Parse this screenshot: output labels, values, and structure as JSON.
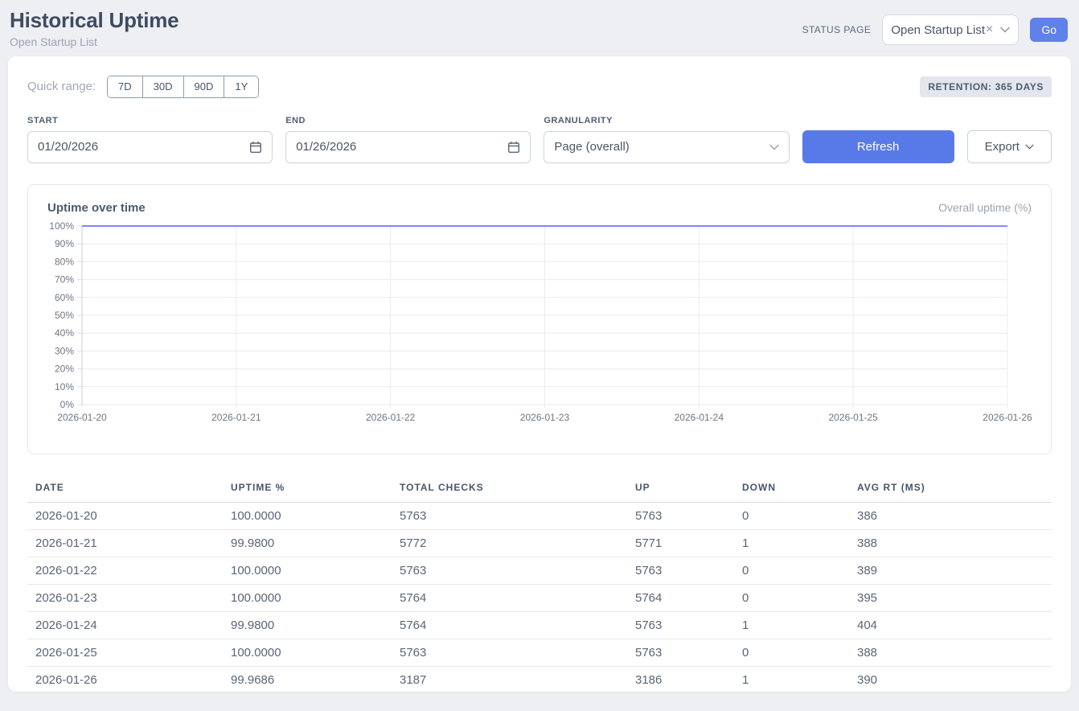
{
  "page": {
    "title": "Historical Uptime",
    "subtitle": "Open Startup List"
  },
  "header": {
    "status_page_label": "STATUS PAGE",
    "status_page_selected": "Open Startup List",
    "clear_symbol": "×",
    "go_button": "Go"
  },
  "filters": {
    "quick_range_label": "Quick range:",
    "quick_ranges": [
      "7D",
      "30D",
      "90D",
      "1Y"
    ],
    "retention_badge": "RETENTION: 365 DAYS",
    "start": {
      "label": "START",
      "value": "01/20/2026"
    },
    "end": {
      "label": "END",
      "value": "01/26/2026"
    },
    "granularity": {
      "label": "GRANULARITY",
      "value": "Page (overall)"
    },
    "refresh_button": "Refresh",
    "export_button": "Export"
  },
  "chart": {
    "title": "Uptime over time",
    "legend": "Overall uptime (%)"
  },
  "chart_data": {
    "type": "line",
    "title": "Uptime over time",
    "x": [
      "2026-01-20",
      "2026-01-21",
      "2026-01-22",
      "2026-01-23",
      "2026-01-24",
      "2026-01-25",
      "2026-01-26"
    ],
    "series": [
      {
        "name": "Overall uptime (%)",
        "values": [
          100.0,
          99.98,
          100.0,
          100.0,
          99.98,
          100.0,
          99.9686
        ]
      }
    ],
    "xlabel": "",
    "ylabel": "",
    "ylim": [
      0,
      100
    ],
    "y_ticks": [
      0,
      10,
      20,
      30,
      40,
      50,
      60,
      70,
      80,
      90,
      100
    ],
    "y_tick_suffix": "%",
    "grid": true,
    "legend_position": "top-right",
    "line_color": "#8187f0"
  },
  "table": {
    "columns": [
      "DATE",
      "UPTIME %",
      "TOTAL CHECKS",
      "UP",
      "DOWN",
      "AVG RT (MS)"
    ],
    "rows": [
      [
        "2026-01-20",
        "100.0000",
        "5763",
        "5763",
        "0",
        "386"
      ],
      [
        "2026-01-21",
        "99.9800",
        "5772",
        "5771",
        "1",
        "388"
      ],
      [
        "2026-01-22",
        "100.0000",
        "5763",
        "5763",
        "0",
        "389"
      ],
      [
        "2026-01-23",
        "100.0000",
        "5764",
        "5764",
        "0",
        "395"
      ],
      [
        "2026-01-24",
        "99.9800",
        "5764",
        "5763",
        "1",
        "404"
      ],
      [
        "2026-01-25",
        "100.0000",
        "5763",
        "5763",
        "0",
        "388"
      ],
      [
        "2026-01-26",
        "99.9686",
        "3187",
        "3186",
        "1",
        "390"
      ]
    ]
  },
  "colors": {
    "accent": "#587ae8",
    "line": "#8187f0",
    "badge_bg": "#e3e7ed",
    "text_dark": "#3d4c61",
    "text_muted": "#9aa4b2"
  }
}
